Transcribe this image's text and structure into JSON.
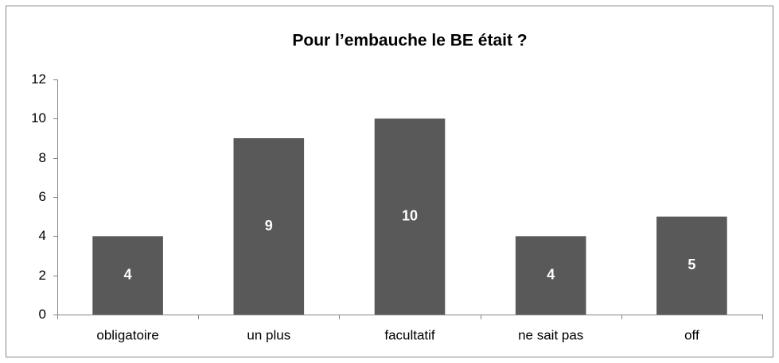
{
  "chart_data": {
    "type": "bar",
    "title": "Pour l’embauche le BE était ?",
    "categories": [
      "obligatoire",
      "un plus",
      "facultatif",
      "ne sait pas",
      "off"
    ],
    "values": [
      4,
      9,
      10,
      4,
      5
    ],
    "color": "#595959",
    "ylim": [
      0,
      12
    ],
    "yticks": [
      0,
      2,
      4,
      6,
      8,
      10,
      12
    ],
    "grid": false
  }
}
